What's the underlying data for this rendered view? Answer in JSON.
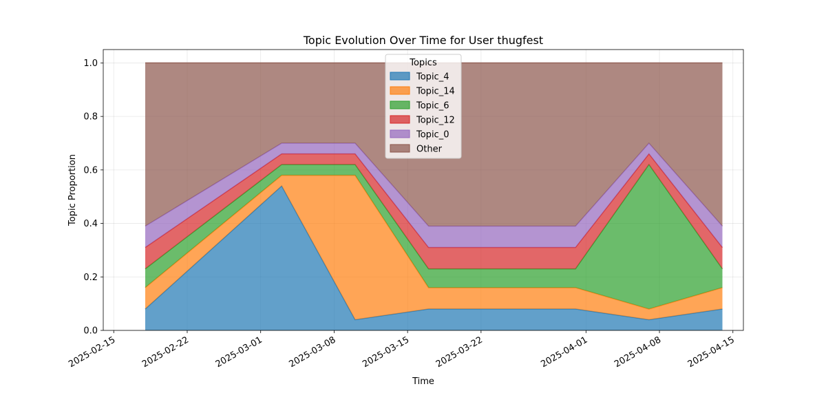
{
  "chart_data": {
    "type": "area",
    "stacked": true,
    "title": "Topic Evolution Over Time for User thugfest",
    "xlabel": "Time",
    "ylabel": "Topic Proportion",
    "x": [
      "2025-02-18",
      "2025-03-03",
      "2025-03-10",
      "2025-03-17",
      "2025-03-31",
      "2025-04-07",
      "2025-04-14"
    ],
    "xlim": [
      "2025-02-14",
      "2025-04-16"
    ],
    "xticks": [
      "2025-02-15",
      "2025-02-22",
      "2025-03-01",
      "2025-03-08",
      "2025-03-15",
      "2025-03-22",
      "2025-04-01",
      "2025-04-08",
      "2025-04-15"
    ],
    "ylim": [
      0,
      1.05
    ],
    "yticks": [
      "0.0",
      "0.2",
      "0.4",
      "0.6",
      "0.8",
      "1.0"
    ],
    "grid": true,
    "legend_title": "Topics",
    "legend_position": "upper center",
    "series": [
      {
        "name": "Topic_4",
        "color": "#1f77b4",
        "values": [
          0.08,
          0.54,
          0.04,
          0.08,
          0.08,
          0.04,
          0.08
        ]
      },
      {
        "name": "Topic_14",
        "color": "#ff7f0e",
        "values": [
          0.08,
          0.04,
          0.54,
          0.08,
          0.08,
          0.04,
          0.08
        ]
      },
      {
        "name": "Topic_6",
        "color": "#2ca02c",
        "values": [
          0.07,
          0.04,
          0.04,
          0.07,
          0.07,
          0.54,
          0.07
        ]
      },
      {
        "name": "Topic_12",
        "color": "#d62728",
        "values": [
          0.08,
          0.04,
          0.04,
          0.08,
          0.08,
          0.04,
          0.08
        ]
      },
      {
        "name": "Topic_0",
        "color": "#9467bd",
        "values": [
          0.08,
          0.04,
          0.04,
          0.08,
          0.08,
          0.04,
          0.08
        ]
      },
      {
        "name": "Other",
        "color": "#8c564b",
        "values": [
          0.61,
          0.3,
          0.3,
          0.61,
          0.61,
          0.3,
          0.61
        ]
      }
    ]
  }
}
